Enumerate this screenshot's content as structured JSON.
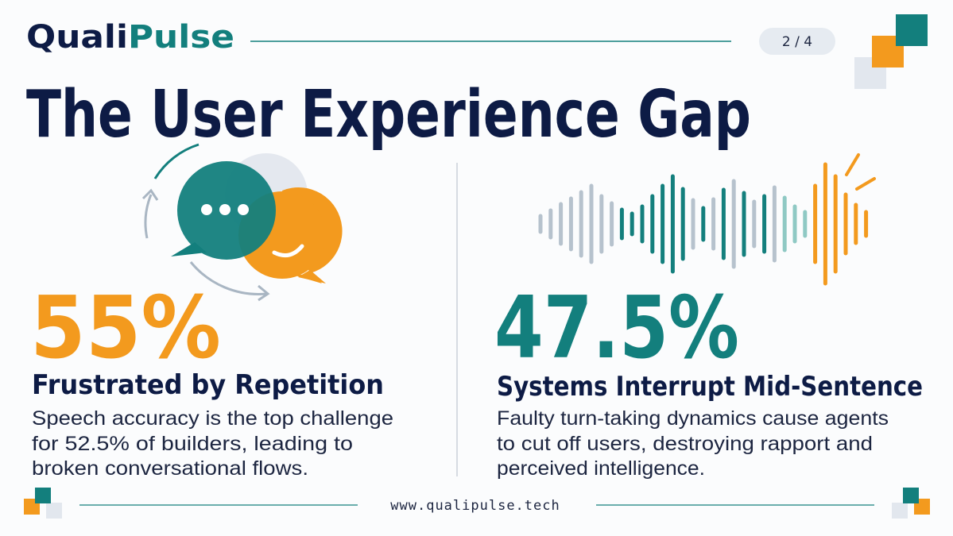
{
  "header": {
    "brand": [
      "Quali",
      "Pulse"
    ],
    "page": "2 / 4",
    "title": "The User Experience Gap"
  },
  "stats": [
    {
      "value": "55%",
      "label": "Frustrated by Repetition",
      "description": [
        "Speech accuracy is the top challenge",
        "for 52.5% of builders, leading to",
        "broken conversational flows."
      ]
    },
    {
      "value": "47.5%",
      "label": "Systems Interrupt Mid-Sentence",
      "description": [
        "Faulty turn-taking dynamics cause agents",
        "to cut off users, destroying rapport and",
        "perceived intelligence."
      ]
    }
  ],
  "footer": {
    "url": "www.qualipulse.tech"
  }
}
